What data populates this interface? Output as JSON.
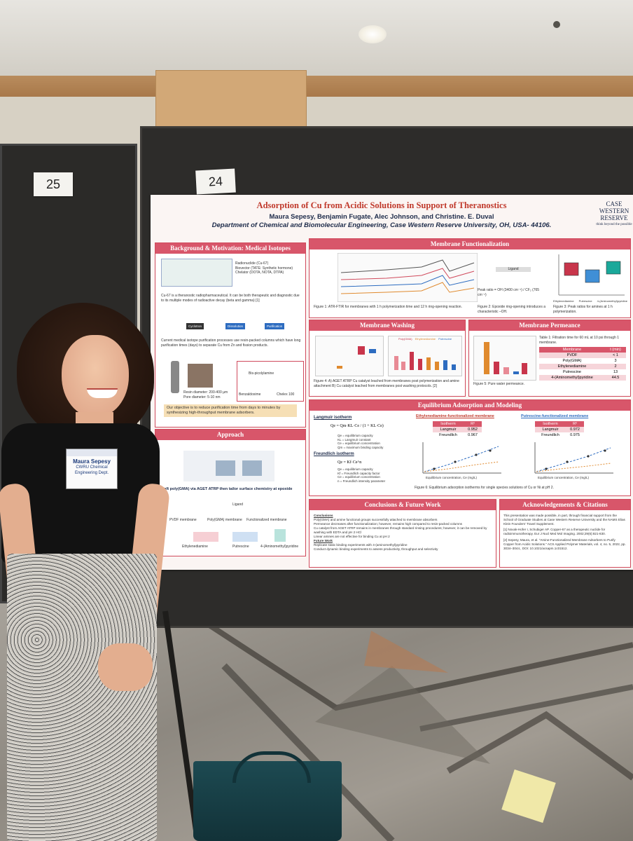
{
  "scene": {
    "board_numbers": [
      "25",
      "24"
    ]
  },
  "poster": {
    "title": "Adsorption of Cu from Acidic Solutions in Support of Theranostics",
    "authors": "Maura Sepesy, Benjamin Fugate, Alec Johnson, and Christine. E. Duval",
    "department": "Department of Chemical and Biomolecular Engineering, Case Western Reserve University, OH, USA- 44106.",
    "logo": {
      "line1": "CASE",
      "line2": "WESTERN",
      "line3": "RESERVE",
      "tagline": "think beyond the possible"
    },
    "sections": {
      "background": "Background & Motivation: Medical Isotopes",
      "approach": "Approach",
      "membrane_func": "Membrane Functionalization",
      "membrane_washing": "Membrane Washing",
      "membrane_permeance": "Membrane Permeance",
      "equilibrium": "Equilibrium Adsorption and Modeling",
      "conclusions": "Conclusions & Future Work",
      "acknowledgements": "Acknowledgements & Citations"
    },
    "background_items": {
      "radionuclide": "Radionuclide (Cu-67)",
      "biovector": "Biovector (TATE: Synthetic hormone)",
      "chelator": "Chelator (DOTA, NOTA, DTPA)",
      "cu67_text": "Cu-67 is a theranostic radiopharmaceutical. It can be both therapeutic and diagnostic due to its multiple modes of radioactive decay (beta and gamma) [1]",
      "flow": [
        "Cyclotron",
        "Dissolution",
        "Purification"
      ],
      "purif_text": "Current medical isotope purification processes use resin-packed columns which have long purification times (days) to separate Cu from Zn and fission products.",
      "resin": "Resin diameter: 200-400 µm",
      "pore": "Pore diameter: 5-10 nm",
      "chem_labels": [
        "Bis-picolylamine",
        "Benzaldoxime",
        "Chelex 100"
      ],
      "objective": "Our objective is to reduce purification time from days to minutes by synthesizing high-throughput membrane adsorbers."
    },
    "approach_items": {
      "caption": "Graft poly(GMA) via AGET ATRP then tailor surface chemistry at epoxide ring.",
      "labels": [
        "PVDF membrane",
        "Poly(GMA) membrane",
        "Functionalized membrane",
        "Ligand"
      ],
      "ligands": [
        "Ethylenediamine",
        "Putrescine",
        "4-(Aminomethyl)pyridine"
      ]
    },
    "func_items": {
      "fig1": "Figure 1: ATR-FTIR for membranes with 1 h polymerization time and 12 h ring-opening reaction.",
      "fig2": "Figure 2: Epoxide ring-opening introduces a characteristic –OH.",
      "fig3": "Figure 3: Peak ratios for amines at 1 h polymerization.",
      "ligand": "Ligand",
      "peak_ratio": "Peak ratio = OH (3400 cm⁻¹) / CF₂ (765 cm⁻¹)",
      "box_labels": [
        "Ethylenediamine",
        "Putrescine",
        "4-(Aminomethyl)pyridine"
      ],
      "box_colors": [
        "#c8354b",
        "#3f8fd6",
        "#1aa89a"
      ]
    },
    "washing_items": {
      "fig4": "Figure 4: A) AGET ATRP Cu catalyst leached from membranes post polymerization and amine attachment B) Cu catalyst leached from membranes post washing protocols. [2]",
      "legend": [
        "Poly(GMA)",
        "Ethylenediamine",
        "Putrescine"
      ]
    },
    "permeance_items": {
      "table_caption": "Table 1: Filtration time for 60 mL at 10 psi through 1 membrane.",
      "fig5": "Figure 5: Pure water permeance.",
      "header": [
        "Membrane",
        "t (min)"
      ],
      "rows": [
        [
          "PVDF",
          "< 1"
        ],
        [
          "Poly(GMA)",
          "3"
        ],
        [
          "Ethylenediamine",
          "2"
        ],
        [
          "Putrescine",
          "13"
        ],
        [
          "4-(Aminomethyl)pyridine",
          "44.5"
        ]
      ]
    },
    "equilibrium_items": {
      "langmuir": "Langmuir isotherm",
      "freundlich": "Freundlich isotherm",
      "langmuir_eq": "Qe = Qm·KL·Ce / (1 + KL·Ce)",
      "freundlich_eq": "Qe = Kf·Ce^n",
      "where_lines": [
        "Qe = equilibrium capacity",
        "KL = Langmuir constant",
        "Ce = equilibrium concentration",
        "Qm = maximum binding capacity"
      ],
      "where_f": [
        "Qe = equilibrium capacity",
        "Kf = Freundlich capacity factor",
        "Ce = equilibrium concentration",
        "n = Freundlich intensity parameter"
      ],
      "eda_title": "Ethylenediamine-functionalized membrane",
      "put_title": "Putrescine-functionalized membrane",
      "iso_header": [
        "Isotherm",
        "R²"
      ],
      "eda_rows": [
        [
          "Langmuir",
          "0.952"
        ],
        [
          "Freundlich",
          "0.967"
        ]
      ],
      "put_rows": [
        [
          "Langmuir",
          "0.972"
        ],
        [
          "Freundlich",
          "0.975"
        ]
      ],
      "xlabel": "Equilibrium concentration, Ce (mg/L)",
      "ylabel": "Binding capacity, Qe (mg Cu/g membrane)",
      "fig6": "Figure 6: Equilibrium adsorption isotherms for single species solutions of Cu or Ni at pH 2."
    },
    "conclusions_items": {
      "conclusions_head": "Conclusions",
      "conclusions": [
        "Poly(GMA) and amine functional groups successfully attached to membrane absorbers",
        "Permeance decreases after functionalization; however, remains high compared to resin-packed columns",
        "Cu catalyst from AGET ATRP remains in membranes through standard rinsing procedures; however, it can be removed by washing with EDTA and pH 2 HCl",
        "Linear amines are not effective for binding Cu at pH 2"
      ],
      "future_head": "Future Work",
      "future": [
        "Replicate static binding experiments with 4-(aminomethyl)pyridine",
        "Conduct dynamic binding experiments to assess productivity, throughput and selectivity"
      ]
    },
    "ack_items": {
      "text": "This presentation was made possible, in part, through financial support from the School of Graduate Studies at Case Western Reserve University and the NAMS Elias Klein Founders' Travel Supplement.",
      "ref1": "[1] Novak-Hofer I, Schubiger AP. Copper-67 as a therapeutic nuclide for radioimmunotherapy. Eur J Nucl Med Mol Imaging. 2002;29(6):821-830.",
      "ref2": "[2] Sepesy, Maura, et al. \"Amine-Functionalized Membrane Adsorbers to Purify Copper from Acidic Solutions.\" ACS Applied Polymer Materials, vol. 4, no. 5, 2022, pp. 3034–3044., DOI: 10.1021/acsapm.1c01512."
    }
  },
  "badge": {
    "name": "Maura Sepesy",
    "org": "CWRU Chemical Engineering Dept."
  }
}
